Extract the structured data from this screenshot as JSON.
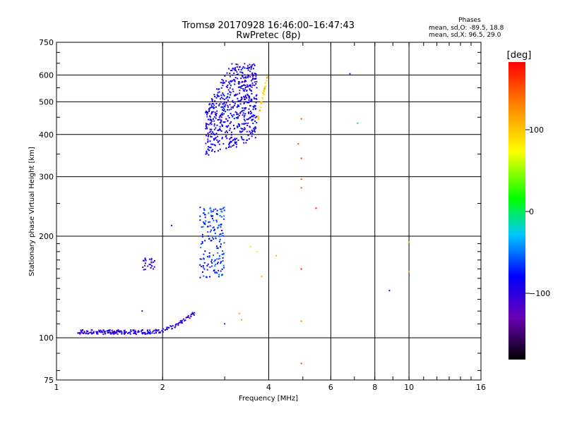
{
  "header": {
    "title": "Tromsø 20170928 16:46:00–16:47:43",
    "subtitle": "RwPretec (8p)"
  },
  "stats": {
    "heading": "Phases",
    "line1": "mean, sd,O: -89.5, 18.8",
    "line2": "mean, sd,X:  96.5, 29.0"
  },
  "colorbar": {
    "label": "[deg]",
    "ticks": [
      "100",
      "0",
      "−100"
    ]
  },
  "chart_data": {
    "type": "scatter",
    "xlabel": "Frequency [MHz]",
    "ylabel": "Stationary phase Virtual Height [km]",
    "x_scale": "log",
    "y_scale": "log",
    "xlim": [
      1,
      16
    ],
    "ylim": [
      75,
      750
    ],
    "x_ticks": [
      "1",
      "2",
      "4",
      "6",
      "8",
      "10",
      "16"
    ],
    "x_tick_values": [
      1,
      2,
      4,
      6,
      8,
      10,
      16
    ],
    "y_ticks": [
      "750",
      "600",
      "500",
      "400",
      "300",
      "200",
      "100",
      "75"
    ],
    "y_tick_values": [
      750,
      600,
      500,
      400,
      300,
      200,
      100,
      75
    ],
    "grid": true,
    "color_scale": {
      "name": "phase",
      "unit": "deg",
      "range": [
        -180,
        180
      ]
    },
    "clusters": [
      {
        "name": "E-layer trace",
        "f_min": 1.15,
        "f_max": 2.5,
        "h_min": 102,
        "h_max": 122,
        "phase_mean": -100,
        "count": 210
      },
      {
        "name": "Es low-frequency patch",
        "f_min": 1.75,
        "f_max": 1.9,
        "h_min": 158,
        "h_max": 172,
        "phase_mean": -100,
        "count": 25
      },
      {
        "name": "F1 cluster",
        "f_min": 2.55,
        "f_max": 3.0,
        "h_min": 150,
        "h_max": 245,
        "phase_mean": -70,
        "count": 170
      },
      {
        "name": "F2 O-trace",
        "f_min": 2.65,
        "f_max": 3.7,
        "h_min": 340,
        "h_max": 650,
        "phase_mean": -90,
        "count": 600
      },
      {
        "name": "F2 X-trace",
        "f_min": 3.7,
        "f_max": 4.0,
        "h_min": 440,
        "h_max": 600,
        "phase_mean": 100,
        "count": 35
      }
    ],
    "points": [
      {
        "x": 2.12,
        "y": 215,
        "phase": -100
      },
      {
        "x": 3.55,
        "y": 186,
        "phase": 60
      },
      {
        "x": 3.7,
        "y": 180,
        "phase": 60
      },
      {
        "x": 3.82,
        "y": 152,
        "phase": 110
      },
      {
        "x": 4.95,
        "y": 445,
        "phase": 150
      },
      {
        "x": 4.85,
        "y": 375,
        "phase": 150
      },
      {
        "x": 4.95,
        "y": 340,
        "phase": 160
      },
      {
        "x": 4.95,
        "y": 295,
        "phase": 150
      },
      {
        "x": 4.95,
        "y": 278,
        "phase": 150
      },
      {
        "x": 5.45,
        "y": 242,
        "phase": 175
      },
      {
        "x": 4.95,
        "y": 160,
        "phase": 170
      },
      {
        "x": 4.95,
        "y": 112,
        "phase": 130
      },
      {
        "x": 4.95,
        "y": 84,
        "phase": 150
      },
      {
        "x": 3.3,
        "y": 118,
        "phase": 110
      },
      {
        "x": 3.35,
        "y": 113,
        "phase": 115
      },
      {
        "x": 3.0,
        "y": 110,
        "phase": -130
      },
      {
        "x": 4.2,
        "y": 175,
        "phase": 110
      },
      {
        "x": 6.8,
        "y": 605,
        "phase": -110
      },
      {
        "x": 7.15,
        "y": 432,
        "phase": -10
      },
      {
        "x": 8.8,
        "y": 138,
        "phase": -95
      },
      {
        "x": 10.0,
        "y": 192,
        "phase": 100
      },
      {
        "x": 10.0,
        "y": 157,
        "phase": 105
      },
      {
        "x": 1.75,
        "y": 120,
        "phase": -100
      }
    ]
  }
}
